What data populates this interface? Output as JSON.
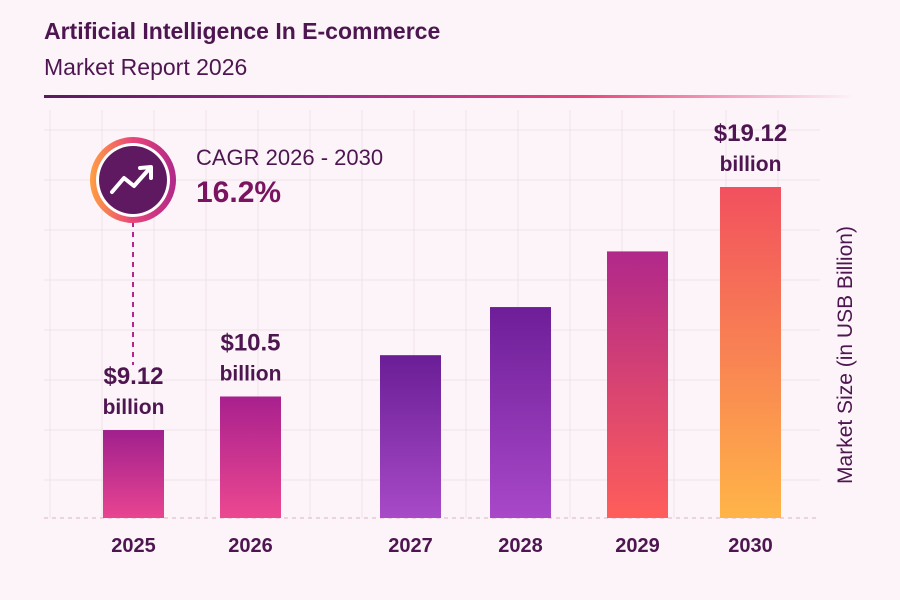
{
  "header": {
    "title": "Artificial Intelligence In E-commerce",
    "subtitle": "Market Report 2026"
  },
  "cagr": {
    "label": "CAGR 2026 - 2030",
    "value": "16.2%",
    "icon": "trending-up-icon"
  },
  "chart_data": {
    "type": "bar",
    "categories": [
      "2025",
      "2026",
      "2027",
      "2028",
      "2029",
      "2030"
    ],
    "values": [
      9.12,
      10.5,
      12.2,
      14.18,
      16.47,
      19.12
    ],
    "data_labels": {
      "0": [
        "$9.12",
        "billion"
      ],
      "1": [
        "$10.5",
        "billion"
      ],
      "5": [
        "$19.12",
        "billion"
      ]
    },
    "ylabel": "Market Size (in USB Billion)",
    "grid": true,
    "colors": [
      [
        "#a0208e",
        "#e84490"
      ],
      [
        "#a8208e",
        "#ec4890"
      ],
      [
        "#6a1e96",
        "#a84ac8"
      ],
      [
        "#6e1e98",
        "#a848c8"
      ],
      [
        "#b0288a",
        "#ff5e5a"
      ],
      [
        "#f2505e",
        "#ffb448"
      ]
    ]
  }
}
